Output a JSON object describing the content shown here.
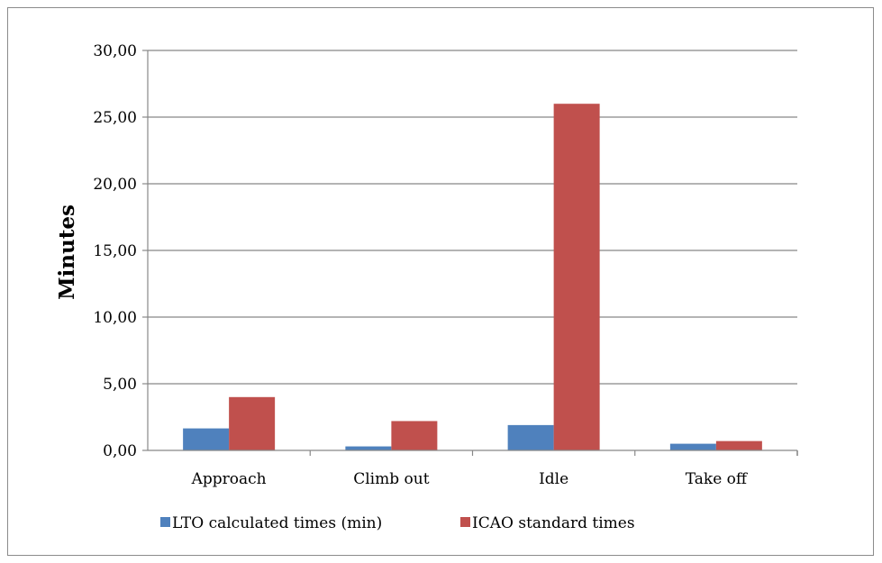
{
  "chart_data": {
    "type": "bar",
    "title": "",
    "xlabel": "",
    "ylabel": "Minutes",
    "categories": [
      "Approach",
      "Climb out",
      "Idle",
      "Take off"
    ],
    "series": [
      {
        "name": "LTO calculated times (min)",
        "values": [
          1.65,
          0.3,
          1.9,
          0.5
        ],
        "color": "#4f81bd"
      },
      {
        "name": "ICAO standard times",
        "values": [
          4.0,
          2.2,
          26.0,
          0.7
        ],
        "color": "#c0504d"
      }
    ],
    "ylim": [
      0,
      30
    ],
    "yticks": [
      "0,00",
      "5,00",
      "10,00",
      "15,00",
      "20,00",
      "25,00",
      "30,00"
    ],
    "ytick_values": [
      0,
      5,
      10,
      15,
      20,
      25,
      30
    ],
    "grid": true,
    "legend_position": "bottom"
  }
}
